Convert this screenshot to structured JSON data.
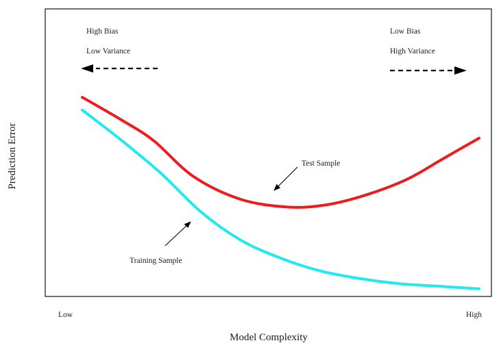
{
  "chart_data": {
    "type": "line",
    "title": "",
    "xlabel": "Model Complexity",
    "ylabel": "Prediction Error",
    "x_tick_labels": [
      "Low",
      "High"
    ],
    "xlim": [
      0,
      100
    ],
    "ylim": [
      0,
      100
    ],
    "grid": false,
    "legend": "none",
    "series": [
      {
        "name": "Test Sample",
        "color": "#ee1c1c",
        "x": [
          0,
          10,
          18,
          28,
          40,
          52,
          62,
          72,
          82,
          91,
          100
        ],
        "y": [
          78,
          69,
          61,
          47,
          38,
          35,
          36,
          40,
          46,
          54,
          62
        ]
      },
      {
        "name": "Training Sample",
        "color": "#1eeaf0",
        "x": [
          0,
          10,
          20,
          30,
          40,
          50,
          60,
          70,
          80,
          90,
          100
        ],
        "y": [
          73,
          61,
          48,
          33,
          22,
          15,
          10,
          7,
          5,
          4,
          3
        ]
      }
    ],
    "annotations": [
      {
        "text": "High Bias",
        "side": "left",
        "row": 1
      },
      {
        "text": "Low Variance",
        "side": "left",
        "row": 2
      },
      {
        "text": "Low Bias",
        "side": "right",
        "row": 1
      },
      {
        "text": "High Variance",
        "side": "right",
        "row": 2
      },
      {
        "text": "Test Sample",
        "points_to": "Test Sample"
      },
      {
        "text": "Training Sample",
        "points_to": "Training Sample"
      }
    ],
    "arrows": [
      {
        "direction": "left",
        "style": "dashed",
        "near": "High Bias / Low Variance"
      },
      {
        "direction": "right",
        "style": "dashed",
        "near": "Low Bias / High Variance"
      }
    ]
  }
}
